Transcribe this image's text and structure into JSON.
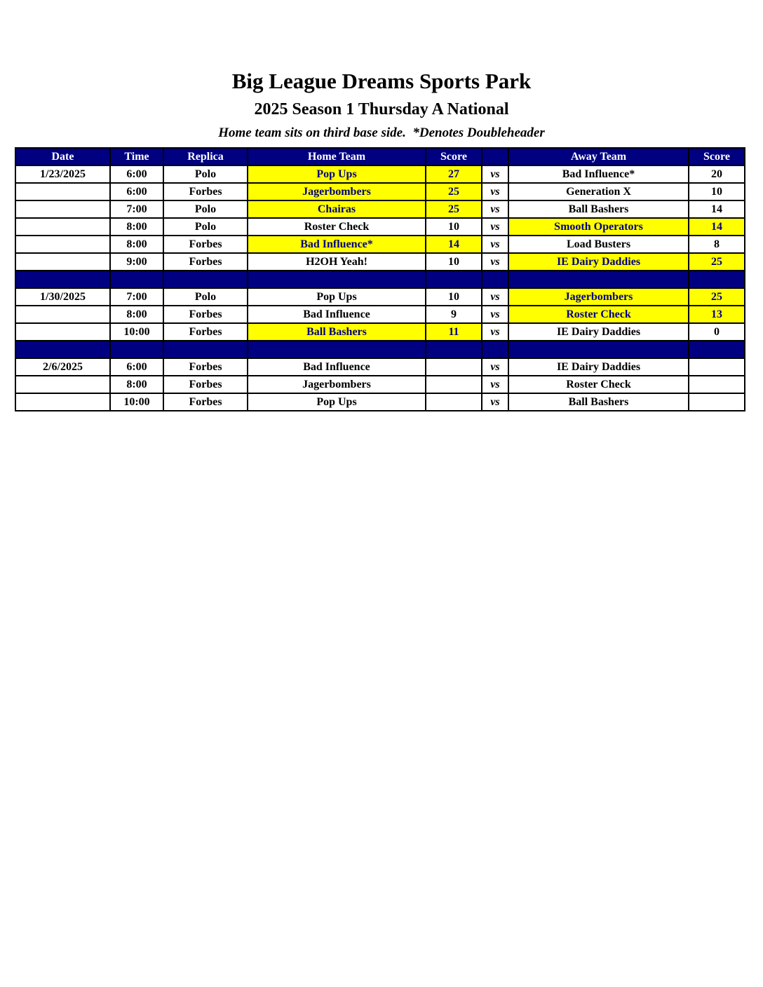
{
  "header": {
    "title": "Big League Dreams Sports Park",
    "subtitle": "2025 Season 1 Thursday A National",
    "note": "Home team sits on third base side.  *Denotes Doubleheader"
  },
  "colors": {
    "header_bg": "#000080",
    "header_text": "#FFFFFF",
    "highlight_bg": "#FFFF00",
    "highlight_text": "#000080",
    "body_text": "#000000",
    "border": "#000000"
  },
  "table": {
    "headers": [
      "Date",
      "Time",
      "Replica",
      "Home Team",
      "Score",
      "",
      "Away Team",
      "Score"
    ],
    "vs_label": "vs",
    "groups": [
      {
        "date": "1/23/2025",
        "games": [
          {
            "time": "6:00",
            "replica": "Polo",
            "home": "Pop Ups",
            "home_score": "27",
            "away": "Bad Influence*",
            "away_score": "20",
            "winner": "home"
          },
          {
            "time": "6:00",
            "replica": "Forbes",
            "home": "Jagerbombers",
            "home_score": "25",
            "away": "Generation X",
            "away_score": "10",
            "winner": "home"
          },
          {
            "time": "7:00",
            "replica": "Polo",
            "home": "Chairas",
            "home_score": "25",
            "away": "Ball Bashers",
            "away_score": "14",
            "winner": "home"
          },
          {
            "time": "8:00",
            "replica": "Polo",
            "home": "Roster Check",
            "home_score": "10",
            "away": "Smooth Operators",
            "away_score": "14",
            "winner": "away"
          },
          {
            "time": "8:00",
            "replica": "Forbes",
            "home": "Bad Influence*",
            "home_score": "14",
            "away": "Load Busters",
            "away_score": "8",
            "winner": "home"
          },
          {
            "time": "9:00",
            "replica": "Forbes",
            "home": "H2OH Yeah!",
            "home_score": "10",
            "away": "IE Dairy Daddies",
            "away_score": "25",
            "winner": "away"
          }
        ]
      },
      {
        "date": "1/30/2025",
        "games": [
          {
            "time": "7:00",
            "replica": "Polo",
            "home": "Pop Ups",
            "home_score": "10",
            "away": "Jagerbombers",
            "away_score": "25",
            "winner": "away"
          },
          {
            "time": "8:00",
            "replica": "Forbes",
            "home": "Bad Influence",
            "home_score": "9",
            "away": "Roster Check",
            "away_score": "13",
            "winner": "away"
          },
          {
            "time": "10:00",
            "replica": "Forbes",
            "home": "Ball Bashers",
            "home_score": "11",
            "away": "IE Dairy Daddies",
            "away_score": "0",
            "winner": "home"
          }
        ]
      },
      {
        "date": "2/6/2025",
        "games": [
          {
            "time": "6:00",
            "replica": "Forbes",
            "home": "Bad Influence",
            "home_score": "",
            "away": "IE Dairy Daddies",
            "away_score": "",
            "winner": ""
          },
          {
            "time": "8:00",
            "replica": "Forbes",
            "home": "Jagerbombers",
            "home_score": "",
            "away": "Roster Check",
            "away_score": "",
            "winner": ""
          },
          {
            "time": "10:00",
            "replica": "Forbes",
            "home": "Pop Ups",
            "home_score": "",
            "away": "Ball Bashers",
            "away_score": "",
            "winner": ""
          }
        ]
      }
    ]
  }
}
